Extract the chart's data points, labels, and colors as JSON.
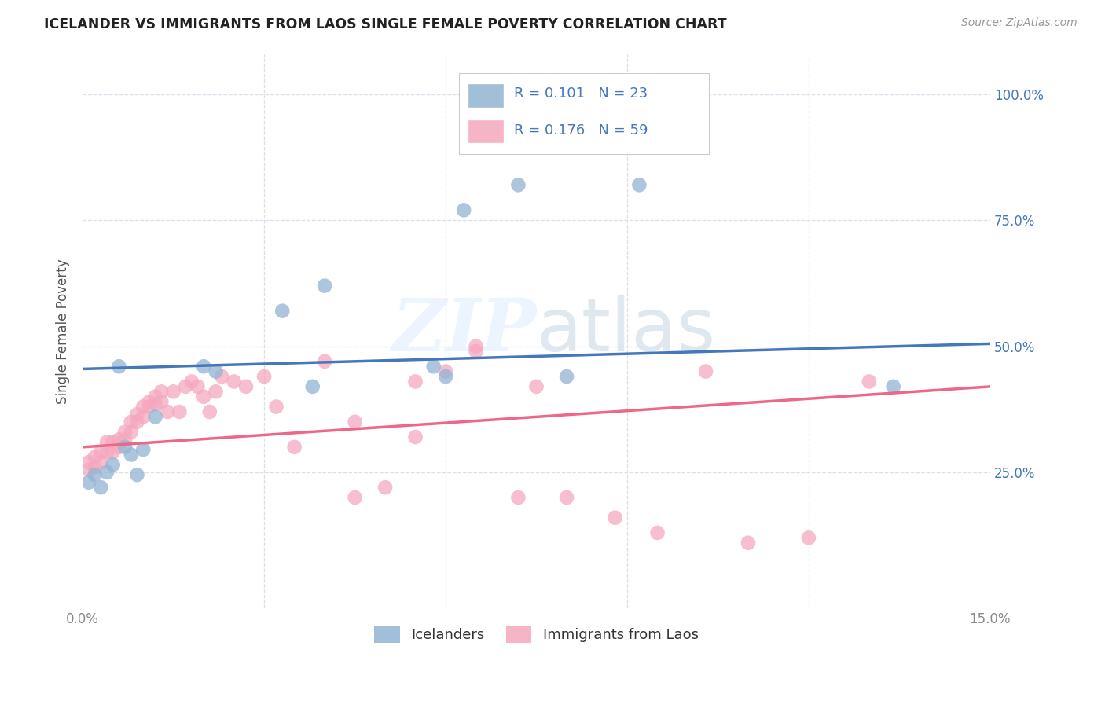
{
  "title": "ICELANDER VS IMMIGRANTS FROM LAOS SINGLE FEMALE POVERTY CORRELATION CHART",
  "source": "Source: ZipAtlas.com",
  "ylabel": "Single Female Poverty",
  "xlim": [
    0.0,
    0.15
  ],
  "ylim": [
    -0.02,
    1.08
  ],
  "blue_color": "#92B4D4",
  "pink_color": "#F4A8BE",
  "line_blue": "#4477BB",
  "line_pink": "#EE6688",
  "blue_R": 0.101,
  "blue_N": 23,
  "pink_R": 0.176,
  "pink_N": 59,
  "blue_line_x0": 0.0,
  "blue_line_y0": 0.455,
  "blue_line_x1": 0.15,
  "blue_line_y1": 0.505,
  "pink_line_x0": 0.0,
  "pink_line_y0": 0.3,
  "pink_line_x1": 0.15,
  "pink_line_y1": 0.42,
  "blue_scatter_x": [
    0.001,
    0.002,
    0.003,
    0.004,
    0.005,
    0.006,
    0.007,
    0.008,
    0.009,
    0.01,
    0.012,
    0.02,
    0.022,
    0.033,
    0.038,
    0.058,
    0.063,
    0.072,
    0.08,
    0.092,
    0.134,
    0.04,
    0.06
  ],
  "blue_scatter_y": [
    0.23,
    0.245,
    0.22,
    0.25,
    0.265,
    0.46,
    0.3,
    0.285,
    0.245,
    0.295,
    0.36,
    0.46,
    0.45,
    0.57,
    0.42,
    0.46,
    0.77,
    0.82,
    0.44,
    0.82,
    0.42,
    0.62,
    0.44
  ],
  "pink_scatter_x": [
    0.001,
    0.001,
    0.002,
    0.002,
    0.003,
    0.003,
    0.004,
    0.004,
    0.005,
    0.005,
    0.006,
    0.006,
    0.007,
    0.007,
    0.008,
    0.008,
    0.009,
    0.009,
    0.01,
    0.01,
    0.011,
    0.011,
    0.012,
    0.012,
    0.013,
    0.013,
    0.014,
    0.015,
    0.016,
    0.017,
    0.018,
    0.019,
    0.02,
    0.021,
    0.022,
    0.023,
    0.025,
    0.027,
    0.03,
    0.032,
    0.035,
    0.04,
    0.045,
    0.05,
    0.055,
    0.06,
    0.065,
    0.075,
    0.088,
    0.095,
    0.103,
    0.11,
    0.12,
    0.13,
    0.045,
    0.055,
    0.065,
    0.072,
    0.08
  ],
  "pink_scatter_y": [
    0.255,
    0.27,
    0.26,
    0.28,
    0.27,
    0.29,
    0.29,
    0.31,
    0.29,
    0.31,
    0.3,
    0.315,
    0.315,
    0.33,
    0.33,
    0.35,
    0.35,
    0.365,
    0.36,
    0.38,
    0.38,
    0.39,
    0.385,
    0.4,
    0.39,
    0.41,
    0.37,
    0.41,
    0.37,
    0.42,
    0.43,
    0.42,
    0.4,
    0.37,
    0.41,
    0.44,
    0.43,
    0.42,
    0.44,
    0.38,
    0.3,
    0.47,
    0.2,
    0.22,
    0.43,
    0.45,
    0.5,
    0.42,
    0.16,
    0.13,
    0.45,
    0.11,
    0.12,
    0.43,
    0.35,
    0.32,
    0.49,
    0.2,
    0.2
  ],
  "watermark_text": "ZIPatlas",
  "watermark_color": "#CCDDEE",
  "legend_label_blue": "Icelanders",
  "legend_label_pink": "Immigrants from Laos",
  "background_color": "#FFFFFF",
  "grid_color": "#DDDDEE",
  "title_color": "#222222",
  "axis_label_color": "#4477BB",
  "tick_color": "#888888"
}
